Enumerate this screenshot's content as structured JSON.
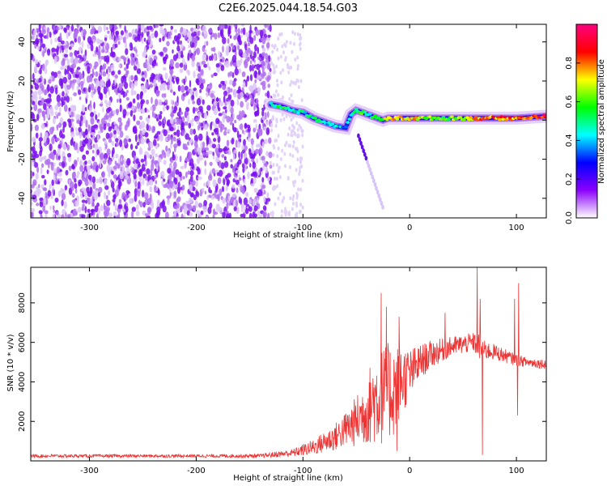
{
  "title": "C2E6.2025.044.18.54.G03",
  "chart_data": [
    {
      "type": "heatmap",
      "xlabel": "Height of straight line (km)",
      "ylabel": "Frequency (Hz)",
      "xlim": [
        -355,
        128
      ],
      "ylim": [
        -50,
        49
      ],
      "x_ticks": [
        -300,
        -200,
        -100,
        0,
        100
      ],
      "y_ticks": [
        -40,
        -20,
        0,
        20,
        40
      ],
      "colorbar": {
        "label": "Normalized spectral amplitude",
        "range": [
          0,
          1
        ],
        "ticks": [
          0.0,
          0.2,
          0.4,
          0.6,
          0.8
        ],
        "tick_labels": [
          "0.0",
          "0.2",
          "0.4",
          "0.6",
          "0.8"
        ],
        "colors": [
          "#ffffff",
          "#8b00ff",
          "#0000ff",
          "#00ffff",
          "#00ff00",
          "#ffff00",
          "#ff0000",
          "#ff0080"
        ]
      },
      "noise_region": {
        "x_range": [
          -355,
          -130
        ],
        "freq_range": [
          -50,
          49
        ]
      },
      "trace": {
        "x": [
          -130,
          -120,
          -110,
          -100,
          -90,
          -80,
          -70,
          -60,
          -55,
          -50,
          -45,
          -40,
          -35,
          -30,
          -25,
          -20,
          -10,
          0,
          20,
          40,
          60,
          80,
          100,
          128
        ],
        "freq": [
          8,
          7,
          5,
          4,
          1,
          -1,
          -3,
          -4,
          3,
          5,
          4,
          3,
          2,
          1,
          0,
          1,
          1,
          1,
          1,
          1,
          1,
          1,
          1,
          2
        ],
        "amplitude": [
          0.45,
          0.5,
          0.5,
          0.45,
          0.45,
          0.45,
          0.4,
          0.4,
          0.35,
          0.5,
          0.55,
          0.5,
          0.5,
          0.55,
          0.6,
          0.7,
          0.75,
          0.75,
          0.6,
          0.6,
          0.75,
          0.8,
          0.8,
          0.9
        ]
      }
    },
    {
      "type": "line",
      "xlabel": "Height of straight line (km)",
      "ylabel": "SNR (10 * v/v)",
      "xlim": [
        -355,
        128
      ],
      "ylim": [
        0,
        9800
      ],
      "x_ticks": [
        -300,
        -200,
        -100,
        0,
        100
      ],
      "y_ticks": [
        2000,
        4000,
        6000,
        8000
      ],
      "color": "#ee3333",
      "envelope": {
        "x": [
          -355,
          -300,
          -200,
          -140,
          -110,
          -90,
          -70,
          -60,
          -50,
          -40,
          -35,
          -30,
          -25,
          -20,
          -15,
          -10,
          0,
          10,
          20,
          30,
          40,
          50,
          60,
          65,
          70,
          80,
          90,
          100,
          110,
          128
        ],
        "base": [
          250,
          250,
          250,
          250,
          400,
          700,
          1200,
          1600,
          2000,
          2600,
          3000,
          3200,
          3300,
          3500,
          3600,
          4000,
          4400,
          5000,
          5400,
          5600,
          5800,
          5900,
          6000,
          5800,
          5600,
          5500,
          5300,
          5100,
          5000,
          4900
        ],
        "spread": [
          80,
          80,
          80,
          100,
          200,
          400,
          700,
          900,
          1300,
          1800,
          2200,
          2400,
          2500,
          2500,
          2400,
          2000,
          1300,
          900,
          700,
          600,
          500,
          500,
          500,
          700,
          500,
          400,
          350,
          300,
          250,
          250
        ]
      },
      "spikes": [
        {
          "x": -27,
          "y": 8500
        },
        {
          "x": -22,
          "y": 7800
        },
        {
          "x": -10,
          "y": 7300
        },
        {
          "x": 33,
          "y": 7500
        },
        {
          "x": 63,
          "y": 9800
        },
        {
          "x": 66,
          "y": 8200
        },
        {
          "x": 98,
          "y": 8200
        },
        {
          "x": 102,
          "y": 9000
        }
      ],
      "dips": [
        {
          "x": -12,
          "y": 500
        },
        {
          "x": 68,
          "y": 300
        },
        {
          "x": 101,
          "y": 2300
        }
      ]
    }
  ]
}
